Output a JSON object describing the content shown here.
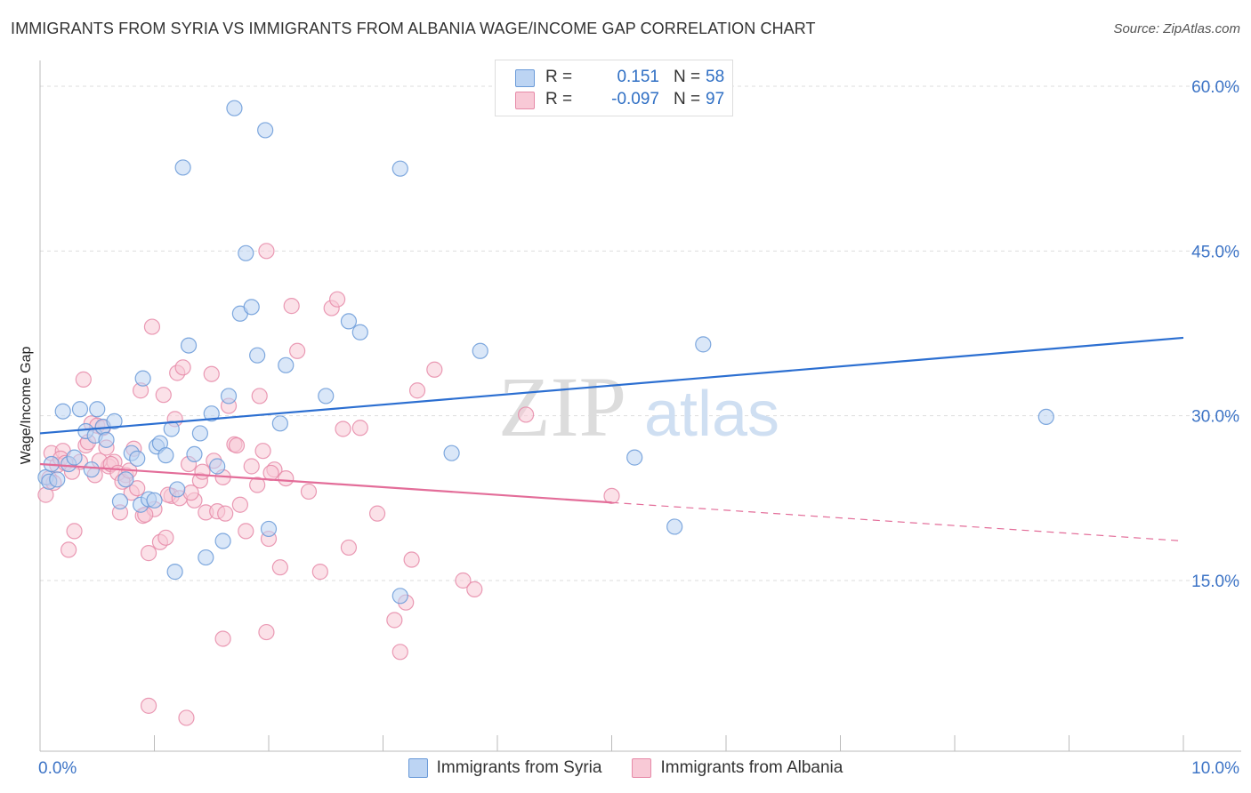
{
  "header": {
    "title": "IMMIGRANTS FROM SYRIA VS IMMIGRANTS FROM ALBANIA WAGE/INCOME GAP CORRELATION CHART",
    "source": "Source: ZipAtlas.com"
  },
  "watermark": {
    "zip": "ZIP",
    "atlas": "atlas"
  },
  "legend_top": {
    "rows": [
      {
        "r_label": "R =",
        "r_value": "0.151",
        "n_label": "N =",
        "n_value": "58",
        "color": "#6a9ad8",
        "fill": "#bcd4f3"
      },
      {
        "r_label": "R =",
        "r_value": "-0.097",
        "n_label": "N =",
        "n_value": "97",
        "color": "#e68aa8",
        "fill": "#f8c9d6"
      }
    ]
  },
  "chart_data": {
    "type": "scatter",
    "title": "IMMIGRANTS FROM SYRIA VS IMMIGRANTS FROM ALBANIA WAGE/INCOME GAP CORRELATION CHART",
    "xlabel": "",
    "ylabel": "Wage/Income Gap",
    "xlim": [
      0,
      10
    ],
    "ylim": [
      0,
      60
    ],
    "x_tick_labels": [
      "0.0%",
      "10.0%"
    ],
    "y_tick_labels": [
      "15.0%",
      "30.0%",
      "45.0%",
      "60.0%"
    ],
    "y_ticks": [
      15,
      30,
      45,
      60
    ],
    "grid": true,
    "legend": "bottom-center",
    "series": [
      {
        "name": "Immigrants from Syria",
        "color": "#6a9ad8",
        "fill": "#bcd4f3",
        "trend": {
          "x0": 0.0,
          "y0": 28.4,
          "x1": 10.0,
          "y1": 37.1,
          "dashed_from": null
        },
        "points": [
          [
            0.05,
            24.4
          ],
          [
            0.08,
            24.0
          ],
          [
            0.1,
            25.6
          ],
          [
            0.15,
            24.2
          ],
          [
            0.2,
            30.4
          ],
          [
            0.25,
            25.6
          ],
          [
            0.3,
            26.2
          ],
          [
            0.35,
            30.6
          ],
          [
            0.4,
            28.6
          ],
          [
            0.45,
            25.1
          ],
          [
            0.48,
            28.2
          ],
          [
            0.5,
            30.6
          ],
          [
            0.55,
            29.0
          ],
          [
            0.58,
            27.8
          ],
          [
            0.65,
            29.5
          ],
          [
            0.75,
            24.2
          ],
          [
            0.7,
            22.2
          ],
          [
            0.8,
            26.6
          ],
          [
            0.85,
            26.1
          ],
          [
            0.88,
            21.9
          ],
          [
            0.9,
            33.4
          ],
          [
            0.95,
            22.4
          ],
          [
            1.0,
            22.3
          ],
          [
            1.02,
            27.2
          ],
          [
            1.05,
            27.5
          ],
          [
            1.1,
            26.4
          ],
          [
            1.15,
            28.8
          ],
          [
            1.2,
            23.3
          ],
          [
            1.25,
            52.6
          ],
          [
            1.3,
            36.4
          ],
          [
            1.35,
            26.5
          ],
          [
            1.4,
            28.4
          ],
          [
            1.45,
            17.1
          ],
          [
            1.5,
            30.2
          ],
          [
            1.55,
            25.4
          ],
          [
            1.6,
            18.6
          ],
          [
            1.65,
            31.8
          ],
          [
            1.7,
            58.0
          ],
          [
            1.75,
            39.3
          ],
          [
            1.8,
            44.8
          ],
          [
            1.85,
            39.9
          ],
          [
            1.9,
            35.5
          ],
          [
            1.97,
            56.0
          ],
          [
            2.0,
            19.7
          ],
          [
            2.1,
            29.3
          ],
          [
            2.15,
            34.6
          ],
          [
            2.5,
            31.8
          ],
          [
            2.7,
            38.6
          ],
          [
            2.8,
            37.6
          ],
          [
            3.15,
            52.5
          ],
          [
            3.15,
            13.6
          ],
          [
            3.6,
            26.6
          ],
          [
            3.85,
            35.9
          ],
          [
            5.2,
            26.2
          ],
          [
            5.55,
            19.9
          ],
          [
            5.8,
            36.5
          ],
          [
            8.8,
            29.9
          ],
          [
            1.18,
            15.8
          ]
        ]
      },
      {
        "name": "Immigrants from Albania",
        "color": "#e68aa8",
        "fill": "#f8c9d6",
        "trend": {
          "x0": 0.0,
          "y0": 25.6,
          "x1": 10.0,
          "y1": 18.6,
          "dashed_from": 5.0
        },
        "points": [
          [
            0.05,
            22.8
          ],
          [
            0.1,
            26.6
          ],
          [
            0.15,
            25.5
          ],
          [
            0.2,
            26.8
          ],
          [
            0.25,
            17.8
          ],
          [
            0.3,
            19.5
          ],
          [
            0.35,
            25.8
          ],
          [
            0.38,
            33.3
          ],
          [
            0.4,
            27.3
          ],
          [
            0.45,
            29.3
          ],
          [
            0.48,
            24.6
          ],
          [
            0.5,
            29.1
          ],
          [
            0.55,
            28.9
          ],
          [
            0.6,
            25.4
          ],
          [
            0.65,
            25.8
          ],
          [
            0.7,
            21.2
          ],
          [
            0.75,
            24.6
          ],
          [
            0.8,
            23.0
          ],
          [
            0.82,
            27.0
          ],
          [
            0.85,
            23.4
          ],
          [
            0.88,
            32.3
          ],
          [
            0.9,
            20.9
          ],
          [
            0.95,
            17.5
          ],
          [
            0.98,
            38.1
          ],
          [
            1.0,
            21.5
          ],
          [
            1.05,
            18.5
          ],
          [
            1.08,
            31.9
          ],
          [
            1.1,
            18.9
          ],
          [
            1.15,
            22.7
          ],
          [
            1.18,
            29.7
          ],
          [
            1.2,
            33.9
          ],
          [
            1.25,
            34.4
          ],
          [
            1.3,
            25.6
          ],
          [
            1.35,
            22.3
          ],
          [
            1.4,
            24.1
          ],
          [
            1.45,
            21.2
          ],
          [
            1.5,
            33.8
          ],
          [
            1.55,
            21.3
          ],
          [
            1.6,
            24.4
          ],
          [
            1.65,
            30.9
          ],
          [
            1.7,
            27.4
          ],
          [
            1.75,
            21.9
          ],
          [
            1.8,
            19.5
          ],
          [
            1.85,
            25.4
          ],
          [
            1.9,
            23.7
          ],
          [
            1.95,
            26.8
          ],
          [
            2.0,
            18.8
          ],
          [
            2.05,
            25.1
          ],
          [
            2.1,
            16.2
          ],
          [
            2.15,
            24.3
          ],
          [
            2.2,
            40.0
          ],
          [
            2.25,
            35.9
          ],
          [
            2.35,
            23.1
          ],
          [
            2.45,
            15.8
          ],
          [
            2.55,
            39.8
          ],
          [
            2.6,
            40.6
          ],
          [
            2.65,
            28.8
          ],
          [
            2.7,
            18.0
          ],
          [
            2.8,
            28.9
          ],
          [
            2.95,
            21.1
          ],
          [
            3.1,
            11.4
          ],
          [
            3.15,
            8.5
          ],
          [
            3.2,
            13.0
          ],
          [
            3.25,
            16.9
          ],
          [
            3.3,
            32.3
          ],
          [
            3.45,
            34.2
          ],
          [
            3.7,
            15.0
          ],
          [
            3.8,
            14.2
          ],
          [
            4.25,
            30.1
          ],
          [
            5.0,
            22.7
          ],
          [
            0.08,
            24.3
          ],
          [
            0.12,
            23.9
          ],
          [
            0.18,
            26.1
          ],
          [
            0.22,
            25.7
          ],
          [
            0.28,
            24.9
          ],
          [
            0.42,
            27.6
          ],
          [
            0.52,
            25.9
          ],
          [
            0.62,
            25.6
          ],
          [
            0.68,
            24.8
          ],
          [
            0.72,
            24.0
          ],
          [
            0.78,
            25.0
          ],
          [
            0.92,
            21.0
          ],
          [
            1.12,
            22.8
          ],
          [
            1.22,
            22.5
          ],
          [
            1.32,
            23.0
          ],
          [
            1.42,
            24.9
          ],
          [
            1.52,
            25.9
          ],
          [
            1.62,
            21.1
          ],
          [
            1.72,
            27.3
          ],
          [
            1.92,
            31.8
          ],
          [
            2.02,
            24.8
          ],
          [
            1.28,
            2.5
          ],
          [
            0.95,
            3.6
          ],
          [
            1.6,
            9.7
          ],
          [
            1.98,
            10.3
          ],
          [
            1.98,
            45.0
          ],
          [
            0.58,
            27.1
          ]
        ]
      }
    ]
  },
  "legend_bottom": {
    "items": [
      {
        "label": "Immigrants from Syria",
        "color": "#6a9ad8",
        "fill": "#bcd4f3"
      },
      {
        "label": "Immigrants from Albania",
        "color": "#e68aa8",
        "fill": "#f8c9d6"
      }
    ]
  }
}
